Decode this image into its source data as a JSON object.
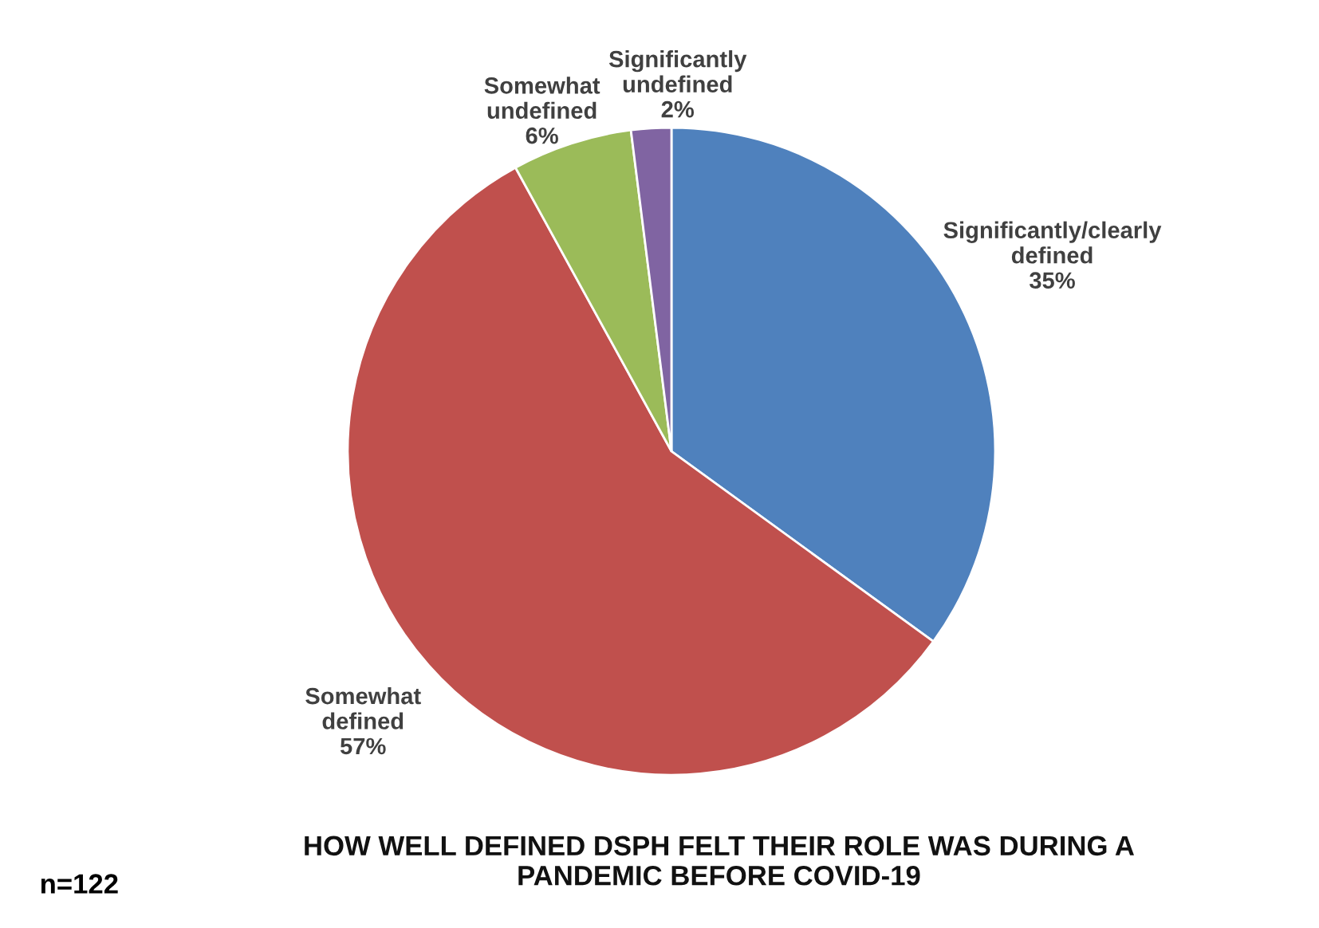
{
  "chart_data": {
    "type": "pie",
    "title": "HOW WELL DEFINED DSPH FELT THEIR ROLE WAS DURING A\nPANDEMIC BEFORE COVID-19",
    "categories": [
      "Significantly/clearly\ndefined",
      "Somewhat\ndefined",
      "Somewhat\nundefined",
      "Significantly\nundefined"
    ],
    "values": [
      35,
      57,
      6,
      2
    ],
    "value_labels": [
      "35%",
      "57%",
      "6%",
      "2%"
    ],
    "colors": [
      "#4f81bd",
      "#c0504d",
      "#9bbb59",
      "#8064a2"
    ],
    "annotations": [
      "n=122"
    ],
    "legend": false
  }
}
